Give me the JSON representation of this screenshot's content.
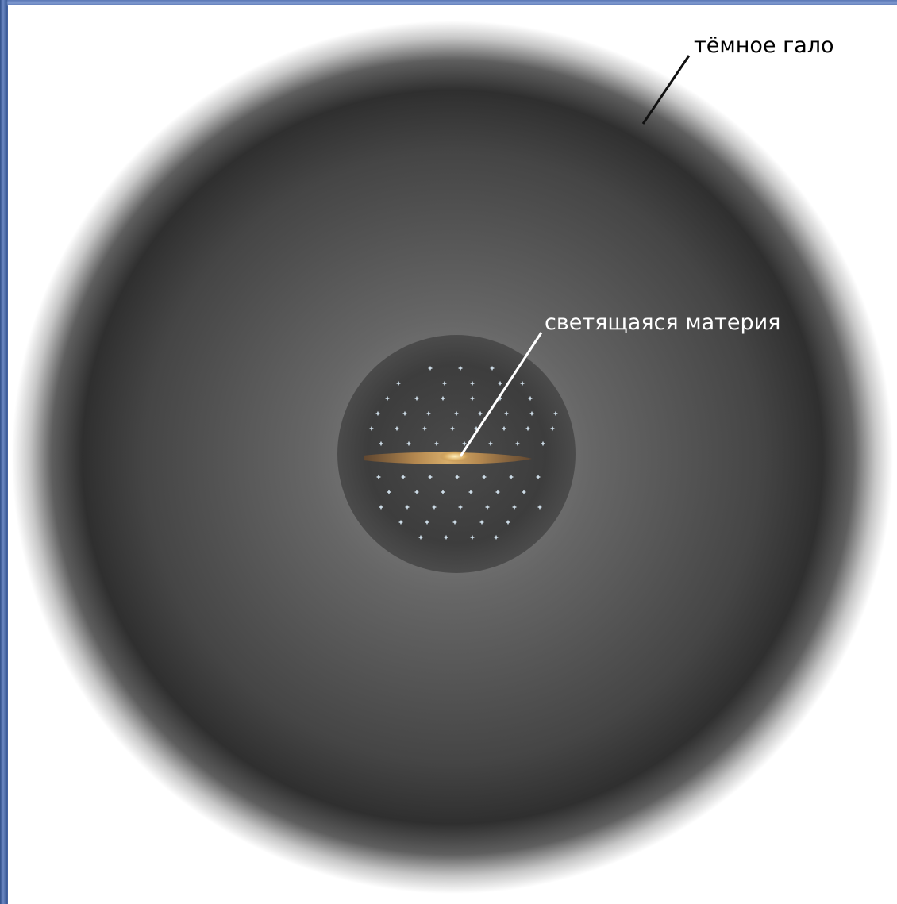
{
  "labels": {
    "dark_halo": "тёмное гало",
    "luminous_matter": "светящаяся материя"
  },
  "colors": {
    "background": "#ffffff",
    "frame_blue": "#4766a6",
    "halo_center": "#848484",
    "halo_mid": "#505050",
    "halo_edge": "#2c2c2c",
    "core": "#3d3d3d",
    "star": "#d9e9f5",
    "disk": "#c89b54",
    "bulge": "#f0d28c",
    "dark_label": "#000000",
    "light_label": "#ffffff"
  }
}
